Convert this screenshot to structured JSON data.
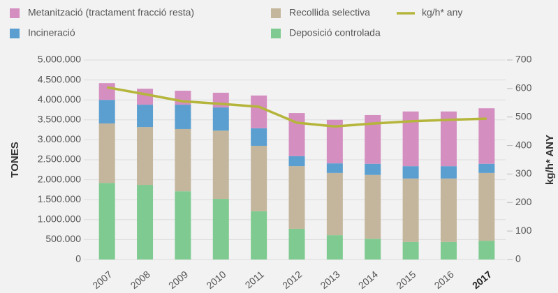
{
  "chart_data": {
    "type": "stacked_bar_line",
    "ylabel": "TONES",
    "y2label": "kg/h* ANY",
    "categories": [
      "2007",
      "2008",
      "2009",
      "2010",
      "2011",
      "2012",
      "2013",
      "2014",
      "2015",
      "2016",
      "2017"
    ],
    "series": [
      {
        "name": "Deposició controlada",
        "color": "#7fca90",
        "values": [
          1920000,
          1870000,
          1710000,
          1520000,
          1210000,
          770000,
          610000,
          520000,
          440000,
          440000,
          470000
        ]
      },
      {
        "name": "Recollida selectiva",
        "color": "#c4b69c",
        "values": [
          1490000,
          1450000,
          1560000,
          1710000,
          1640000,
          1570000,
          1560000,
          1600000,
          1590000,
          1590000,
          1700000
        ]
      },
      {
        "name": "Incineració",
        "color": "#5b9fd0",
        "values": [
          590000,
          560000,
          610000,
          580000,
          440000,
          250000,
          240000,
          280000,
          310000,
          310000,
          230000
        ]
      },
      {
        "name": "Metanització (tractament fracció resta)",
        "color": "#d48fc0",
        "values": [
          420000,
          400000,
          350000,
          370000,
          820000,
          1080000,
          1090000,
          1220000,
          1370000,
          1370000,
          1390000
        ]
      },
      {
        "name": "kg/h* any",
        "color": "#b5b53c",
        "axis": "y2",
        "type": "line",
        "values": [
          604,
          580,
          555,
          546,
          536,
          480,
          467,
          477,
          485,
          490,
          494
        ]
      }
    ],
    "ylim": [
      0,
      5000000
    ],
    "yticks": [
      0,
      {
        "value": 500000,
        "label": "500.000"
      },
      {
        "value": 1000000,
        "label": "1.000.000"
      },
      {
        "value": 1500000,
        "label": "1.500.000"
      },
      {
        "value": 2000000,
        "label": "2.000.000"
      },
      {
        "value": 2500000,
        "label": "2.500.000"
      },
      {
        "value": 3000000,
        "label": "3.000.000"
      },
      {
        "value": 3500000,
        "label": "3.500.000"
      },
      {
        "value": 4000000,
        "label": "4.000.000"
      },
      {
        "value": 4500000,
        "label": "4.500.000"
      },
      {
        "value": 5000000,
        "label": "5.000.000"
      }
    ],
    "y2lim": [
      0,
      700
    ],
    "y2ticks": [
      0,
      100,
      200,
      300,
      400,
      500,
      600,
      700
    ]
  }
}
